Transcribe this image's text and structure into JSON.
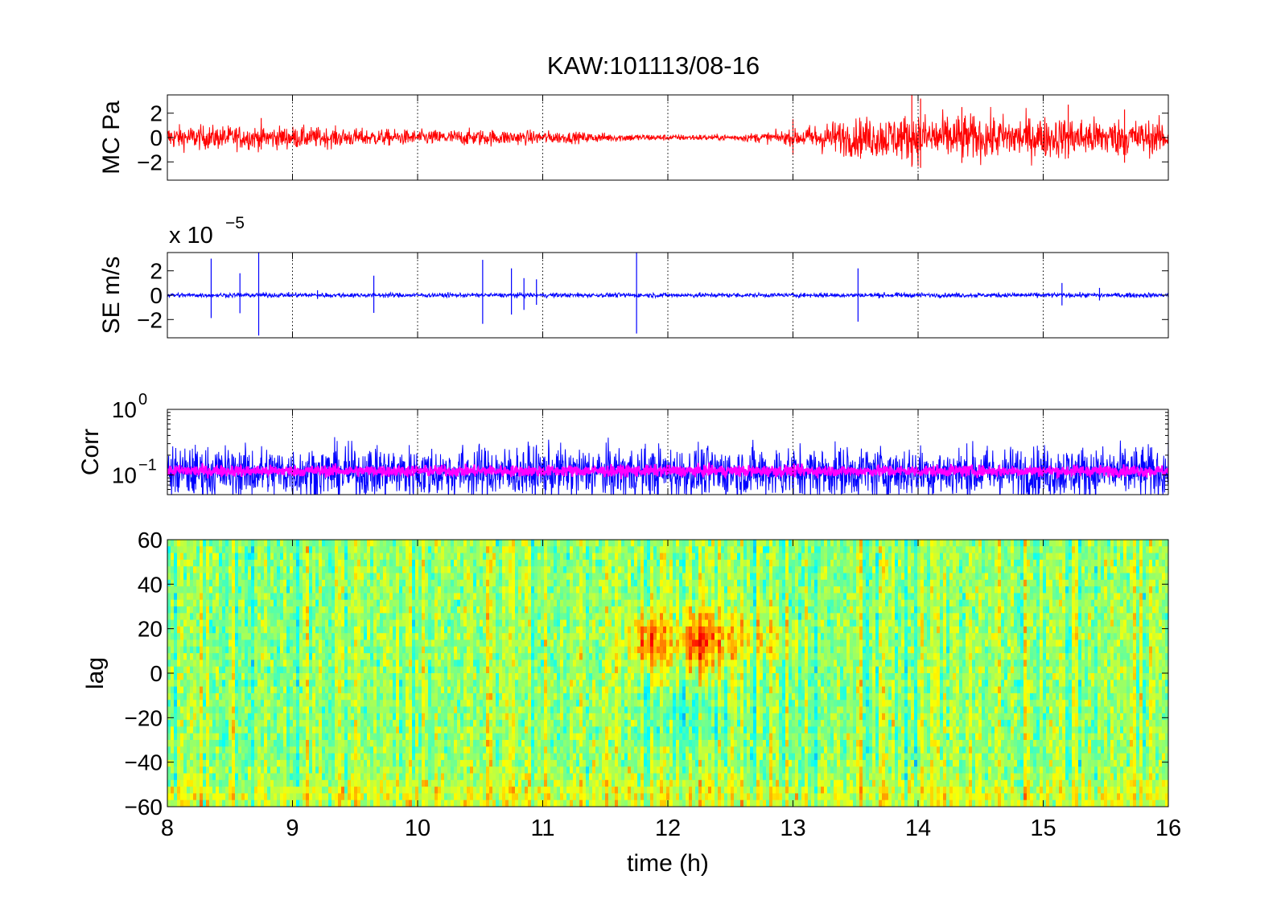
{
  "figure": {
    "title": "KAW:101113/08-16"
  },
  "chart_data": [
    {
      "type": "line",
      "ylabel": "MC Pa",
      "xlim": [
        8,
        16
      ],
      "ylim": [
        -3.5,
        3.5
      ],
      "yticks": [
        -2,
        0,
        2
      ],
      "ytick_labels": [
        "−2",
        "0",
        "2"
      ],
      "xticks": [
        8,
        9,
        10,
        11,
        12,
        13,
        14,
        15,
        16
      ],
      "xgrid": "dotted",
      "series": [
        {
          "color": "#ff0000",
          "style": "noise",
          "envelope": {
            "x": [
              8,
              8.5,
              9,
              9.5,
              10,
              10.5,
              11,
              11.5,
              12,
              12.5,
              13,
              13.2,
              13.5,
              14,
              14.5,
              15,
              15.5,
              16
            ],
            "amplitude": [
              0.8,
              0.8,
              0.75,
              0.6,
              0.5,
              0.55,
              0.45,
              0.3,
              0.2,
              0.2,
              0.5,
              1.0,
              1.3,
              1.6,
              1.5,
              1.4,
              1.3,
              1.1
            ]
          },
          "spikes": [
            [
              8.75,
              1.6
            ],
            [
              13.0,
              1.5
            ],
            [
              13.95,
              3.5
            ],
            [
              14.02,
              3.2
            ],
            [
              14.35,
              2.5
            ],
            [
              15.2,
              2.7
            ],
            [
              15.65,
              2.3
            ]
          ]
        }
      ]
    },
    {
      "type": "line",
      "ylabel": "SE m/s",
      "scale_label": "x 10",
      "scale_exponent": "−5",
      "xlim": [
        8,
        16
      ],
      "ylim": [
        -3.5,
        3.5
      ],
      "yticks": [
        -2,
        0,
        2
      ],
      "ytick_labels": [
        "−2",
        "0",
        "2"
      ],
      "xticks": [
        8,
        9,
        10,
        11,
        12,
        13,
        14,
        15,
        16
      ],
      "xgrid": "dotted",
      "series": [
        {
          "color": "#0000ff",
          "style": "noise",
          "envelope": {
            "x": [
              8,
              16
            ],
            "amplitude": [
              0.15,
              0.15
            ]
          },
          "spikes": [
            [
              8.35,
              3.0
            ],
            [
              8.58,
              1.8
            ],
            [
              8.73,
              3.5
            ],
            [
              9.2,
              0.4
            ],
            [
              9.65,
              1.6
            ],
            [
              10.52,
              2.9
            ],
            [
              10.75,
              2.2
            ],
            [
              10.85,
              1.4
            ],
            [
              10.95,
              1.3
            ],
            [
              11.75,
              3.5
            ],
            [
              13.52,
              2.2
            ],
            [
              15.15,
              1.0
            ],
            [
              15.45,
              0.6
            ]
          ]
        }
      ]
    },
    {
      "type": "line",
      "ylabel": "Corr",
      "yscale": "log",
      "xlim": [
        8,
        16
      ],
      "ylim": [
        0.05,
        1
      ],
      "yticks": [
        0.1,
        1
      ],
      "ytick_labels": [
        {
          "base": "10",
          "exp": "−1"
        },
        {
          "base": "10",
          "exp": "0"
        }
      ],
      "xticks": [
        8,
        9,
        10,
        11,
        12,
        13,
        14,
        15,
        16
      ],
      "xgrid": "dotted",
      "series": [
        {
          "color": "#0000ff",
          "style": "band",
          "center": 0.11,
          "spread_log": 0.28
        },
        {
          "color": "#ff00ff",
          "style": "band",
          "center": 0.115,
          "spread_log": 0.06
        }
      ]
    },
    {
      "type": "heatmap",
      "ylabel": "lag",
      "xlabel": "time (h)",
      "xlim": [
        8,
        16
      ],
      "ylim": [
        -60,
        60
      ],
      "yticks": [
        -60,
        -40,
        -20,
        0,
        20,
        40,
        60
      ],
      "ytick_labels": [
        "−60",
        "−40",
        "−20",
        "0",
        "20",
        "40",
        "60"
      ],
      "xticks": [
        8,
        9,
        10,
        11,
        12,
        13,
        14,
        15,
        16
      ],
      "xtick_labels": [
        "8",
        "9",
        "10",
        "11",
        "12",
        "13",
        "14",
        "15",
        "16"
      ],
      "colormap": "jet",
      "features": [
        {
          "x_range": [
            11.5,
            13.3
          ],
          "lag_center": 15,
          "intensity": "high",
          "peak_x": [
            11.85,
            12.25
          ]
        },
        {
          "x_range": [
            11.7,
            12.6
          ],
          "lag_center": -20,
          "intensity": "low"
        },
        {
          "x_range": [
            8,
            16
          ],
          "lag_center": -55,
          "intensity": "medium-high"
        }
      ]
    }
  ]
}
